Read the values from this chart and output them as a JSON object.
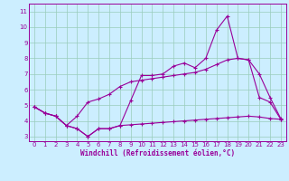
{
  "xlabel": "Windchill (Refroidissement éolien,°C)",
  "bg_color": "#cceeff",
  "line_color": "#990099",
  "grid_color": "#99ccbb",
  "xlim": [
    -0.5,
    23.5
  ],
  "ylim": [
    2.7,
    11.5
  ],
  "xticks": [
    0,
    1,
    2,
    3,
    4,
    5,
    6,
    7,
    8,
    9,
    10,
    11,
    12,
    13,
    14,
    15,
    16,
    17,
    18,
    19,
    20,
    21,
    22,
    23
  ],
  "yticks": [
    3,
    4,
    5,
    6,
    7,
    8,
    9,
    10,
    11
  ],
  "line1_x": [
    0,
    1,
    2,
    3,
    4,
    5,
    6,
    7,
    8,
    9,
    10,
    11,
    12,
    13,
    14,
    15,
    16,
    17,
    18,
    19,
    20,
    21,
    22,
    23
  ],
  "line1_y": [
    4.9,
    4.5,
    4.3,
    3.7,
    3.5,
    3.0,
    3.5,
    3.5,
    3.7,
    5.3,
    6.9,
    6.9,
    7.0,
    7.5,
    7.7,
    7.4,
    8.0,
    9.8,
    10.7,
    8.0,
    7.9,
    5.5,
    5.2,
    4.1
  ],
  "line2_x": [
    0,
    1,
    2,
    3,
    4,
    5,
    6,
    7,
    8,
    9,
    10,
    11,
    12,
    13,
    14,
    15,
    16,
    17,
    18,
    19,
    20,
    21,
    22,
    23
  ],
  "line2_y": [
    4.9,
    4.5,
    4.3,
    3.7,
    4.3,
    5.2,
    5.4,
    5.7,
    6.2,
    6.5,
    6.6,
    6.7,
    6.8,
    6.9,
    7.0,
    7.1,
    7.3,
    7.6,
    7.9,
    8.0,
    7.9,
    7.0,
    5.5,
    4.15
  ],
  "line3_x": [
    0,
    1,
    2,
    3,
    4,
    5,
    6,
    7,
    8,
    9,
    10,
    11,
    12,
    13,
    14,
    15,
    16,
    17,
    18,
    19,
    20,
    21,
    22,
    23
  ],
  "line3_y": [
    4.9,
    4.5,
    4.3,
    3.7,
    3.5,
    3.0,
    3.5,
    3.5,
    3.7,
    3.75,
    3.8,
    3.85,
    3.9,
    3.95,
    4.0,
    4.05,
    4.1,
    4.15,
    4.2,
    4.25,
    4.3,
    4.25,
    4.15,
    4.1
  ]
}
